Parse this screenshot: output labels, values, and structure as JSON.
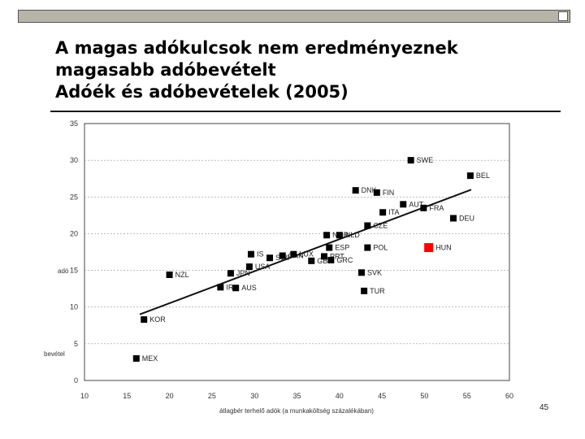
{
  "slide": {
    "title_lines": [
      "A magas adókulcsok nem eredményeznek",
      "magasabb adóbevételt",
      "Adóék és adóbevételek (2005)"
    ],
    "page_number": "45",
    "colors": {
      "top_bar": "#b5b5a8",
      "highlight_point": "#ff0000",
      "points": "#000000"
    }
  },
  "chart_data": {
    "type": "scatter",
    "title": "",
    "xlabel": "átlagbér terhelő adók (a munkaköltség százalékában)",
    "ylabel_fragments": [
      "adó",
      "bevétel"
    ],
    "xlim": [
      10,
      60
    ],
    "ylim": [
      0,
      35
    ],
    "xticks": [
      10,
      15,
      20,
      25,
      30,
      35,
      40,
      45,
      50,
      55,
      60
    ],
    "yticks": [
      0,
      5,
      10,
      15,
      20,
      25,
      30,
      35
    ],
    "grid": "horizontal dashed",
    "points": [
      {
        "label": "MEX",
        "x": 16.1,
        "y": 3.0
      },
      {
        "label": "KOR",
        "x": 17.0,
        "y": 8.3
      },
      {
        "label": "NZL",
        "x": 20.0,
        "y": 14.4
      },
      {
        "label": "IRL",
        "x": 26.0,
        "y": 12.7
      },
      {
        "label": "AUS",
        "x": 27.8,
        "y": 12.6
      },
      {
        "label": "JPN",
        "x": 27.2,
        "y": 14.6
      },
      {
        "label": "USA",
        "x": 29.4,
        "y": 15.5
      },
      {
        "label": "IS",
        "x": 29.6,
        "y": 17.2
      },
      {
        "label": "SWI",
        "x": 31.8,
        "y": 16.7
      },
      {
        "label": "CAN",
        "x": 33.3,
        "y": 17.0
      },
      {
        "label": "LUX",
        "x": 34.6,
        "y": 17.2
      },
      {
        "label": "GBR",
        "x": 36.7,
        "y": 16.3
      },
      {
        "label": "PRT",
        "x": 38.2,
        "y": 16.9
      },
      {
        "label": "GRC",
        "x": 39.0,
        "y": 16.4
      },
      {
        "label": "ESP",
        "x": 38.8,
        "y": 18.1
      },
      {
        "label": "NOR",
        "x": 38.5,
        "y": 19.8
      },
      {
        "label": "NLD",
        "x": 40.0,
        "y": 19.8
      },
      {
        "label": "CZE",
        "x": 43.3,
        "y": 21.1
      },
      {
        "label": "POL",
        "x": 43.3,
        "y": 18.1
      },
      {
        "label": "SVK",
        "x": 42.6,
        "y": 14.7
      },
      {
        "label": "TUR",
        "x": 42.9,
        "y": 12.2
      },
      {
        "label": "ITA",
        "x": 45.1,
        "y": 22.9
      },
      {
        "label": "DNK",
        "x": 41.9,
        "y": 25.9
      },
      {
        "label": "FIN",
        "x": 44.4,
        "y": 25.6
      },
      {
        "label": "AUT",
        "x": 47.5,
        "y": 24.0
      },
      {
        "label": "FRA",
        "x": 49.9,
        "y": 23.5
      },
      {
        "label": "SWE",
        "x": 48.4,
        "y": 30.0
      },
      {
        "label": "BEL",
        "x": 55.4,
        "y": 27.9
      },
      {
        "label": "DEU",
        "x": 53.4,
        "y": 22.1
      },
      {
        "label": "HUN",
        "x": 50.5,
        "y": 18.1,
        "highlight": true
      }
    ],
    "trendline": {
      "x": [
        16.5,
        55.5
      ],
      "y": [
        9.0,
        26.0
      ]
    }
  }
}
